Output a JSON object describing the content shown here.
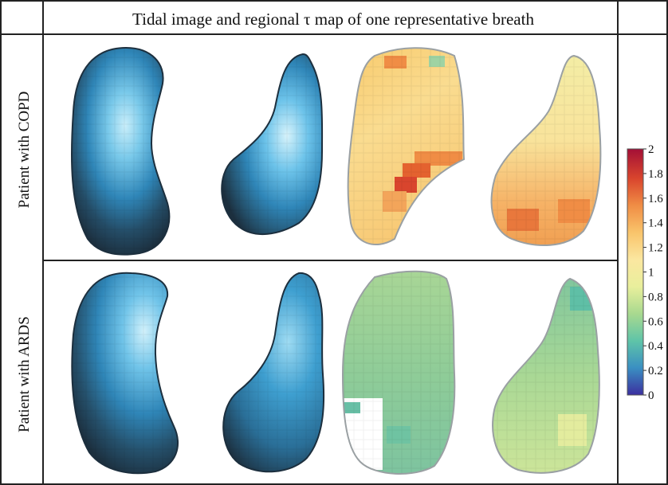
{
  "figure": {
    "title": "Tidal image and regional τ map of one representative breath",
    "rows": [
      {
        "label": "Patient with COPD"
      },
      {
        "label": "Patient with ARDS"
      }
    ]
  },
  "colorbar": {
    "ticks": [
      "2",
      "1.8",
      "1.6",
      "1.4",
      "1.2",
      "1",
      "0.8",
      "0.6",
      "0.4",
      "0.2",
      "0"
    ],
    "range": [
      0,
      2
    ],
    "colors": [
      "#3b2fa0",
      "#3a8fc2",
      "#5fc4a8",
      "#a8d98f",
      "#e9ef9c",
      "#fbe7a0",
      "#f9c46b",
      "#f08d45",
      "#d9452d",
      "#a30f36"
    ]
  },
  "colors": {
    "tidal_dark": "#1f3647",
    "tidal_mid": "#2f86b8",
    "tidal_light": "#bfeaf8",
    "outline": "#9aa0a3"
  }
}
